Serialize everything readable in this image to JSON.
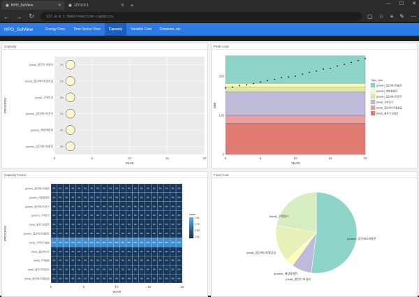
{
  "browser": {
    "tabs": [
      {
        "label": "HPO_SolView"
      },
      {
        "label": "127.0.0.1"
      }
    ],
    "address": "127.0.0.1:5002/#section-capacity"
  },
  "app": {
    "brand": "HPO_SolView",
    "menu": [
      "Energy Flow",
      "Time-Series View",
      "Capacity",
      "Variable Cost",
      "Emission, etc."
    ],
    "active": "Capacity"
  },
  "panels": {
    "capacity": {
      "title": "Capacity"
    },
    "peak": {
      "title": "Peak Load"
    },
    "cf": {
      "title": "Capacity Factor"
    },
    "fixed": {
      "title": "Fixed Cost"
    }
  },
  "chart_data": [
    {
      "type": "scatter",
      "title": "Capacity",
      "xlabel": "YEAR",
      "ylabel": "PROCESS",
      "xlim": [
        0,
        20
      ],
      "x_ticks": [
        "0",
        "5",
        "10",
        "15",
        "20"
      ],
      "categories": [
        "(heat)_발전기 보일러",
        "(heat)_집단에너지열공급",
        "(heat)_구역전기",
        "(power)_집단에너지전기",
        "(power)_태양광발전",
        "(power)_집단에너지발전"
      ],
      "points": [
        {
          "x": 1,
          "label": "2%"
        },
        {
          "x": 1,
          "label": "1%"
        },
        {
          "x": 1,
          "label": "5%"
        },
        {
          "x": 1,
          "label": "1%"
        },
        {
          "x": 1,
          "label": "3%"
        },
        {
          "x": 1,
          "label": "3%"
        }
      ]
    },
    {
      "type": "area",
      "title": "Peak Load",
      "xlabel": "YEAR",
      "ylabel": "MW",
      "xlim": [
        0,
        20
      ],
      "ylim": [
        0,
        250
      ],
      "x_ticks": [
        "0",
        "5",
        "10",
        "15",
        "20"
      ],
      "y_ticks": [
        "0",
        "100",
        "200"
      ],
      "legend_title": "Type_Use",
      "series": [
        {
          "name": "(power)_집단에너지발전",
          "value": 70,
          "color": "#8dd3c7"
        },
        {
          "name": "(power)_태양광발전",
          "value": 10,
          "color": "#ffffb3"
        },
        {
          "name": "(power)_집단에너지전기",
          "value": 12,
          "color": "#dfe8a4"
        },
        {
          "name": "(heat)_구역전기",
          "value": 60,
          "color": "#bebada"
        },
        {
          "name": "(heat)_집단에너지열공급",
          "value": 20,
          "color": "#e8a0a0"
        },
        {
          "name": "(heat)_발전기 보일러",
          "value": 80,
          "color": "#e07b74"
        }
      ],
      "demand_points": [
        170,
        172,
        176,
        178,
        181,
        185,
        189,
        192,
        196,
        198,
        200,
        205,
        210,
        213,
        218,
        220,
        226,
        230,
        235,
        240,
        245
      ]
    },
    {
      "type": "heatmap",
      "title": "Capacity Factor",
      "xlabel": "YEAR",
      "ylabel": "PROCESS",
      "x_ticks": [
        "0",
        "5",
        "10",
        "15",
        "20"
      ],
      "legend_title": "value",
      "legend_ticks": [
        "1.00",
        "0.75",
        "0.50",
        "0.25"
      ],
      "rows": [
        "(power)_집단에너지발전",
        "(power)_태양광발전",
        "(power)_집단에너지전기",
        "(power)_구역전기",
        "(heat)_발전기보일러",
        "(power)_집단에너지발전2",
        "(heat)_구역전기설비",
        "(heat)_집단에너지",
        "(heat)_구역설비",
        "(heat)_발전기보일러2",
        "(heat)_집단에너지열공급"
      ],
      "row_values": [
        0.0,
        0.0,
        0.0,
        0.0,
        0.0,
        0.0,
        0.35,
        0.0,
        0.0,
        0.0,
        0.0
      ],
      "cell_label": "0%",
      "highlight_label": "35%",
      "columns": 21
    },
    {
      "type": "pie",
      "title": "Fixed Cost",
      "slices": [
        {
          "label": "(power)_집단에너지발전",
          "value": 52,
          "color": "#8dd3c7"
        },
        {
          "label": "(heat)_발전기 보일러",
          "value": 8,
          "color": "#bebada"
        },
        {
          "label": "(power)_태양광발전",
          "value": 3,
          "color": "#ffffb3"
        },
        {
          "label": "(heat)_집단에너지열공급",
          "value": 15,
          "color": "#e6f0b8"
        },
        {
          "label": "(heat)_구역전기",
          "value": 22,
          "color": "#d6edc0"
        }
      ]
    }
  ]
}
